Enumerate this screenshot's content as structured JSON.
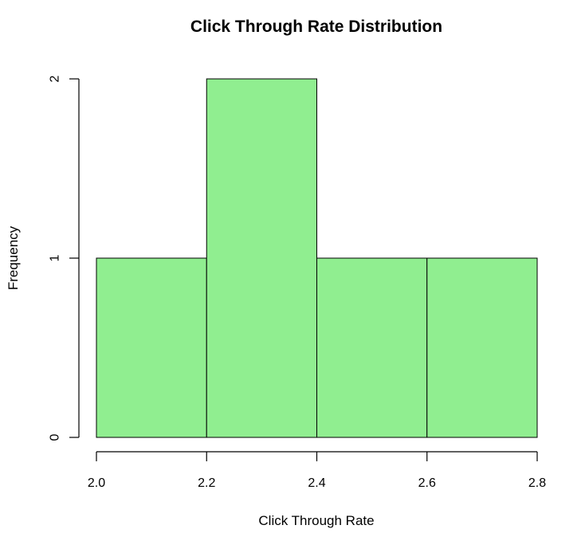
{
  "chart_data": {
    "type": "bar",
    "title": "Click Through Rate Distribution",
    "xlabel": "Click Through Rate",
    "ylabel": "Frequency",
    "bins": [
      {
        "from": 2.0,
        "to": 2.2,
        "count": 1
      },
      {
        "from": 2.2,
        "to": 2.4,
        "count": 2
      },
      {
        "from": 2.4,
        "to": 2.6,
        "count": 1
      },
      {
        "from": 2.6,
        "to": 2.8,
        "count": 1
      }
    ],
    "xlim": [
      2.0,
      2.8
    ],
    "ylim": [
      0,
      2
    ],
    "x_ticks": [
      "2.0",
      "2.2",
      "2.4",
      "2.6",
      "2.8"
    ],
    "y_ticks": [
      "0",
      "1",
      "2"
    ],
    "bar_color": "#90EE90",
    "grid": false,
    "legend": "none"
  }
}
